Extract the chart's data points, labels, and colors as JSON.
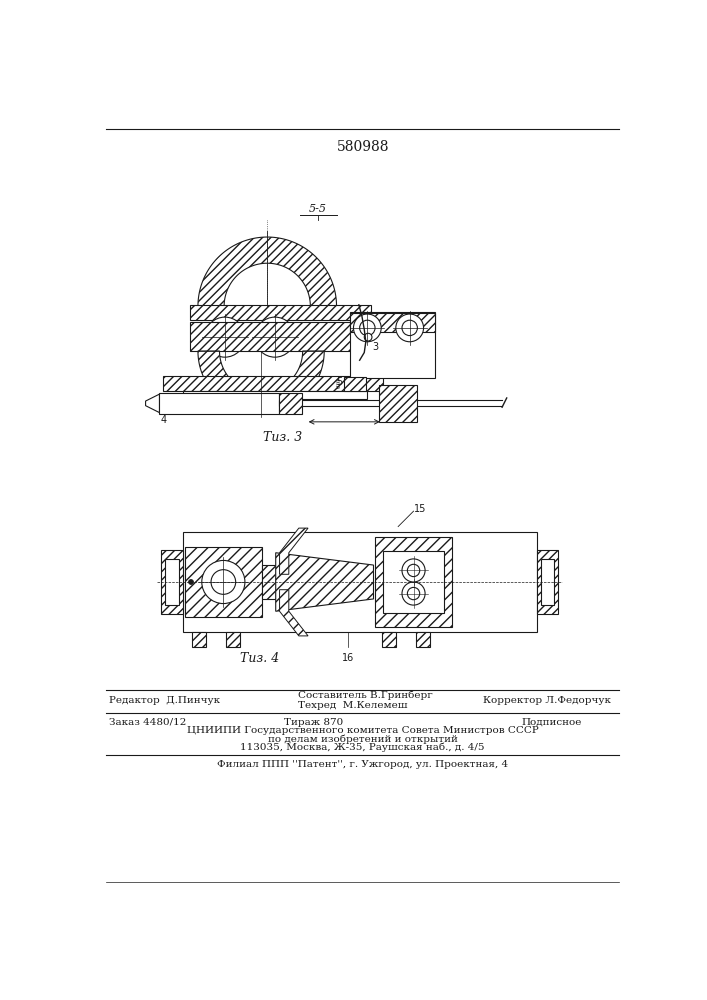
{
  "patent_number": "580988",
  "fig3_label": "Τиз. 3",
  "fig4_label": "Τиз. 4",
  "section_label": "5-5",
  "editor_line": "Редактор  Д.Пинчук",
  "composer_line": "Составитель В.Гринберг",
  "techred_line": "Техред  М.Келемеш",
  "corrector_line": "Корректор Л.Федорчук",
  "order_line": "Заказ 4480/12",
  "tirazh_line": "Тираж 870",
  "podpisnoe": "Подписное",
  "cniipи_line": "ЦНИИПИ Государственного комитета Совета Министров СССР",
  "po_delam_line": "по делам изобретений и открытий",
  "address_line": "113035, Москва, Ж-35, Раушская наб., д. 4/5",
  "filial_line": "Филиал ППП ''Патент'', г. Ужгород, ул. Проектная, 4",
  "bg_color": "#ffffff",
  "lc": "#1a1a1a"
}
